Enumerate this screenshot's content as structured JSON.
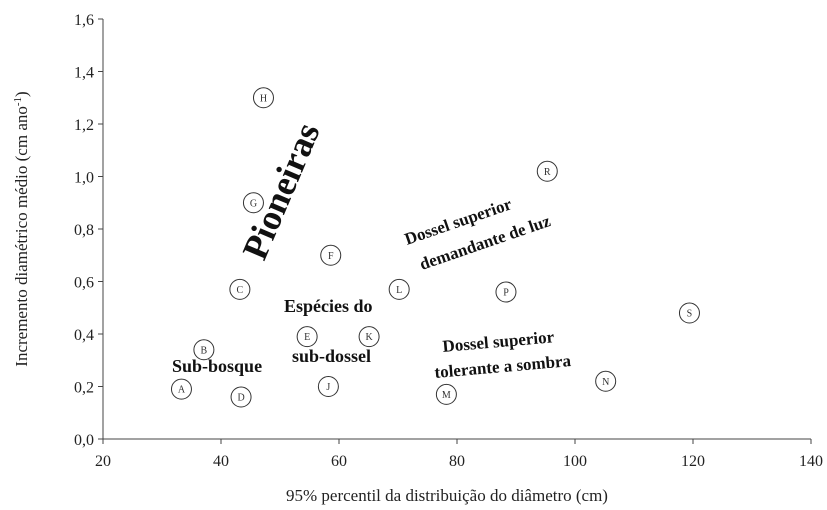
{
  "chart_data": {
    "type": "scatter",
    "xlabel": "95% percentil da distribuição do diâmetro (cm)",
    "ylabel": "Incremento diamétrico médio (cm ano",
    "ylabel_sup": "-1",
    "ylabel_close": ")",
    "xlim": [
      20,
      140
    ],
    "ylim": [
      0,
      1.6
    ],
    "x_ticks": [
      20,
      40,
      60,
      80,
      100,
      120,
      140
    ],
    "y_ticks": [
      0,
      0.2,
      0.4,
      0.6,
      0.8,
      1.0,
      1.2,
      1.4,
      1.6
    ],
    "x_tick_labels": [
      "20",
      "40",
      "60",
      "80",
      "100",
      "120",
      "140"
    ],
    "y_tick_labels": [
      "0,0",
      "0,2",
      "0,4",
      "0,6",
      "0,8",
      "1,0",
      "1,2",
      "1,4",
      "1,6"
    ],
    "grid": false,
    "points": [
      {
        "label": "A",
        "x": 33.3,
        "y": 0.19
      },
      {
        "label": "B",
        "x": 37.1,
        "y": 0.34
      },
      {
        "label": "C",
        "x": 43.2,
        "y": 0.57
      },
      {
        "label": "D",
        "x": 43.4,
        "y": 0.16
      },
      {
        "label": "E",
        "x": 54.6,
        "y": 0.39
      },
      {
        "label": "F",
        "x": 58.6,
        "y": 0.7
      },
      {
        "label": "G",
        "x": 45.5,
        "y": 0.9
      },
      {
        "label": "H",
        "x": 47.2,
        "y": 1.3
      },
      {
        "label": "J",
        "x": 58.2,
        "y": 0.2
      },
      {
        "label": "K",
        "x": 65.1,
        "y": 0.39
      },
      {
        "label": "L",
        "x": 70.2,
        "y": 0.57
      },
      {
        "label": "M",
        "x": 78.2,
        "y": 0.17
      },
      {
        "label": "N",
        "x": 105.2,
        "y": 0.22
      },
      {
        "label": "P",
        "x": 88.3,
        "y": 0.56
      },
      {
        "label": "R",
        "x": 95.3,
        "y": 1.02
      },
      {
        "label": "S",
        "x": 119.4,
        "y": 0.48
      }
    ],
    "annotations": [
      {
        "text": "Pioneiras"
      },
      {
        "text": "Dossel superior"
      },
      {
        "text": "demandante de luz"
      },
      {
        "text": "Espécies do"
      },
      {
        "text": "sub-dossel"
      },
      {
        "text": "Sub-bosque"
      },
      {
        "text": "Dossel superior"
      },
      {
        "text": "tolerante a sombra"
      }
    ]
  }
}
